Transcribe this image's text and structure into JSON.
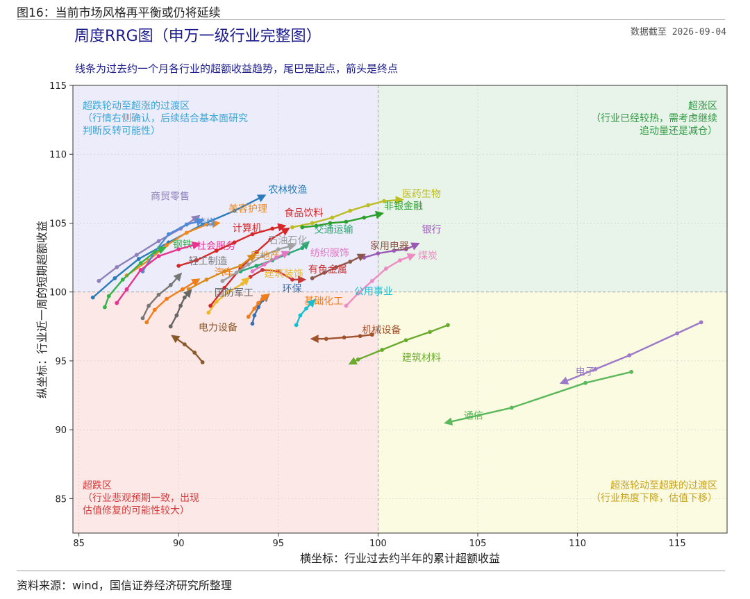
{
  "figure_label": "图16：当前市场风格再平衡或仍将延续",
  "source": "资料来源：wind，国信证券经济研究所整理",
  "chart_data": {
    "type": "line",
    "title": "周度RRG图（申万一级行业完整图）",
    "date_note": "数据截至  2026-09-04",
    "subtitle": "线条为过去约一个月各行业的超额收益趋势，尾巴是起点，箭头是终点",
    "xlabel": "横坐标：行业过去约半年的累计超额收益",
    "ylabel": "纵坐标：行业近一周的短期超额收益",
    "xlim": [
      84.7,
      117.5
    ],
    "ylim": [
      82.5,
      115
    ],
    "xticks": [
      85,
      90,
      95,
      100,
      105,
      110,
      115
    ],
    "yticks": [
      85,
      90,
      95,
      100,
      105,
      110,
      115
    ],
    "center": [
      100,
      100
    ],
    "grid": true,
    "quadrants": [
      {
        "name": "超跌轮动至超涨的过渡区",
        "lines": [
          "超跌轮动至超涨的过渡区",
          "（行情右侧确认，后续结合基本面研究",
          "判断反转可能性）"
        ],
        "color": "#3aa6d6",
        "fill": "#ececfb",
        "corner": "top-left"
      },
      {
        "name": "超涨区",
        "lines": [
          "超涨区",
          "（行业已经较热，需考虑继续",
          "追动量还是减仓）"
        ],
        "color": "#2e9a40",
        "fill": "#e8f3ea",
        "corner": "top-right"
      },
      {
        "name": "超跌区",
        "lines": [
          "超跌区",
          "（行业悲观预期一致，出现",
          "估值修复的可能性较大）"
        ],
        "color": "#d43a3a",
        "fill": "#fde8e8",
        "corner": "bottom-left"
      },
      {
        "name": "超涨轮动至超跌的过渡区",
        "lines": [
          "超涨轮动至超跌的过渡区",
          "（行业热度下降，估值下移）"
        ],
        "color": "#c8a21a",
        "fill": "#fbfbe2",
        "corner": "bottom-right"
      }
    ],
    "series": [
      {
        "name": "农林牧渔",
        "color": "#2b7bba",
        "points": [
          [
            85.7,
            99.6
          ],
          [
            86.8,
            101.0
          ],
          [
            88.0,
            102.4
          ],
          [
            89.5,
            103.6
          ],
          [
            91.2,
            104.9
          ],
          [
            92.8,
            105.9
          ],
          [
            94.3,
            107.0
          ]
        ],
        "label": [
          94.5,
          107.2
        ]
      },
      {
        "name": "商贸零售",
        "color": "#8d7fb8",
        "points": [
          [
            86.0,
            100.8
          ],
          [
            86.9,
            101.8
          ],
          [
            87.9,
            102.7
          ],
          [
            89.0,
            103.7
          ],
          [
            90.1,
            104.6
          ],
          [
            91.0,
            105.5
          ]
        ],
        "label": [
          88.6,
          106.7
        ]
      },
      {
        "name": "美容护理",
        "color": "#f08a1c",
        "points": [
          [
            87.4,
            101.2
          ],
          [
            88.5,
            102.3
          ],
          [
            89.4,
            103.4
          ],
          [
            90.4,
            104.3
          ],
          [
            91.4,
            104.9
          ],
          [
            92.0,
            105.0
          ]
        ],
        "label": [
          92.5,
          105.8
        ]
      },
      {
        "name": "传媒",
        "color": "#4c8ad8",
        "points": [
          [
            88.2,
            101.5
          ],
          [
            88.8,
            102.9
          ],
          [
            89.5,
            104.2
          ],
          [
            90.4,
            104.9
          ],
          [
            91.2,
            105.2
          ]
        ],
        "label": [
          90.9,
          104.8
        ]
      },
      {
        "name": "钢铁",
        "color": "#35b24a",
        "points": [
          [
            86.3,
            98.9
          ],
          [
            86.5,
            99.7
          ],
          [
            87.2,
            100.9
          ],
          [
            88.1,
            102.1
          ],
          [
            88.8,
            102.9
          ],
          [
            89.3,
            103.2
          ]
        ],
        "label": [
          89.7,
          103.2
        ]
      },
      {
        "name": "社会服务",
        "color": "#e6338f",
        "points": [
          [
            86.9,
            99.2
          ],
          [
            87.4,
            100.2
          ],
          [
            88.1,
            101.6
          ],
          [
            89.0,
            102.6
          ],
          [
            90.0,
            103.1
          ],
          [
            91.0,
            103.5
          ]
        ],
        "label": [
          90.9,
          103.1
        ]
      },
      {
        "name": "计算机",
        "color": "#d62728",
        "points": [
          [
            90.0,
            101.9
          ],
          [
            90.9,
            102.3
          ],
          [
            91.9,
            103.0
          ],
          [
            92.8,
            103.6
          ],
          [
            93.7,
            104.2
          ],
          [
            94.7,
            104.6
          ],
          [
            95.3,
            104.8
          ]
        ],
        "label": [
          92.7,
          104.4
        ]
      },
      {
        "name": "食品饮料",
        "color": "#d62728",
        "points": [
          [
            91.6,
            99.0
          ],
          [
            92.3,
            100.3
          ],
          [
            93.1,
            101.7
          ],
          [
            93.9,
            102.9
          ],
          [
            94.6,
            103.8
          ],
          [
            95.5,
            104.6
          ]
        ],
        "label": [
          95.3,
          105.5
        ]
      },
      {
        "name": "医药生物",
        "color": "#bcbd22",
        "points": [
          [
            95.7,
            104.7
          ],
          [
            96.7,
            105.0
          ],
          [
            97.7,
            105.4
          ],
          [
            98.6,
            105.9
          ],
          [
            99.5,
            106.3
          ],
          [
            100.3,
            106.6
          ],
          [
            101.2,
            106.7
          ]
        ],
        "label": [
          101.2,
          106.9
        ]
      },
      {
        "name": "非银金融",
        "color": "#2ca02c",
        "points": [
          [
            96.2,
            104.7
          ],
          [
            96.9,
            104.8
          ],
          [
            97.6,
            105.0
          ],
          [
            98.4,
            105.1
          ],
          [
            99.3,
            105.4
          ],
          [
            100.2,
            105.7
          ]
        ],
        "label": [
          100.3,
          106.0
        ]
      },
      {
        "name": "交通运输",
        "color": "#27a86e",
        "points": [
          [
            93.1,
            101.5
          ],
          [
            93.9,
            101.9
          ],
          [
            94.7,
            102.3
          ],
          [
            95.5,
            102.8
          ],
          [
            96.2,
            103.2
          ],
          [
            96.5,
            103.6
          ]
        ],
        "label": [
          96.8,
          104.3
        ]
      },
      {
        "name": "石油石化",
        "color": "#a0a0a0",
        "points": [
          [
            92.2,
            100.8
          ],
          [
            92.9,
            101.4
          ],
          [
            93.5,
            102.0
          ],
          [
            94.2,
            102.6
          ],
          [
            95.0,
            103.1
          ],
          [
            95.8,
            103.4
          ]
        ],
        "label": [
          94.5,
          103.5
        ]
      },
      {
        "name": "银行",
        "color": "#9b59b6",
        "points": [
          [
            99.3,
            102.5
          ],
          [
            100.0,
            102.8
          ],
          [
            100.8,
            103.0
          ],
          [
            101.4,
            103.1
          ],
          [
            102.0,
            103.5
          ]
        ],
        "label": [
          102.2,
          104.3
        ]
      },
      {
        "name": "家用电器",
        "color": "#8c564b",
        "points": [
          [
            96.7,
            101.0
          ],
          [
            97.3,
            101.4
          ],
          [
            97.9,
            101.8
          ],
          [
            98.6,
            102.2
          ],
          [
            99.3,
            102.7
          ]
        ],
        "label": [
          99.6,
          103.1
        ]
      },
      {
        "name": "煤炭",
        "color": "#ed8cc3",
        "points": [
          [
            98.4,
            99.0
          ],
          [
            99.0,
            99.9
          ],
          [
            99.7,
            100.8
          ],
          [
            100.4,
            101.7
          ],
          [
            101.1,
            102.3
          ],
          [
            101.8,
            102.7
          ]
        ],
        "label": [
          102.0,
          102.4
        ]
      },
      {
        "name": "纺织服饰",
        "color": "#e377c2",
        "points": [
          [
            93.7,
            101.5
          ],
          [
            94.3,
            102.0
          ],
          [
            94.9,
            102.5
          ],
          [
            95.5,
            102.9
          ]
        ],
        "label": [
          96.6,
          102.6
        ]
      },
      {
        "name": "房地产",
        "color": "#d98a1a",
        "points": [
          [
            90.5,
            100.2
          ],
          [
            91.4,
            100.9
          ],
          [
            92.3,
            101.5
          ],
          [
            93.1,
            101.9
          ],
          [
            93.8,
            102.7
          ]
        ],
        "label": [
          93.6,
          102.4
        ]
      },
      {
        "name": "轻工制造",
        "color": "#777777",
        "points": [
          [
            88.2,
            98.1
          ],
          [
            88.5,
            99.0
          ],
          [
            89.0,
            99.8
          ],
          [
            89.6,
            100.5
          ],
          [
            90.1,
            101.3
          ]
        ],
        "label": [
          90.5,
          102.0
        ]
      },
      {
        "name": "有色金属",
        "color": "#c93636",
        "points": [
          [
            93.6,
            101.1
          ],
          [
            94.2,
            101.6
          ],
          [
            95.0,
            101.5
          ],
          [
            95.7,
            100.9
          ],
          [
            96.3,
            100.9
          ]
        ],
        "label": [
          96.5,
          101.4
        ]
      },
      {
        "name": "汽车",
        "color": "#f07d18",
        "points": [
          [
            88.4,
            97.8
          ],
          [
            88.8,
            98.7
          ],
          [
            89.4,
            99.5
          ],
          [
            90.2,
            100.2
          ],
          [
            91.0,
            100.9
          ]
        ],
        "label": [
          91.8,
          101.2
        ]
      },
      {
        "name": "建筑装饰",
        "color": "#f0b92d",
        "points": [
          [
            91.5,
            98.5
          ],
          [
            91.9,
            99.3
          ],
          [
            92.5,
            100.0
          ],
          [
            93.2,
            100.6
          ],
          [
            93.5,
            101.0
          ]
        ],
        "label": [
          94.3,
          101.1
        ]
      },
      {
        "name": "环保",
        "color": "#3c6fb0",
        "points": [
          [
            93.7,
            97.7
          ],
          [
            93.8,
            98.3
          ],
          [
            94.0,
            98.9
          ],
          [
            94.2,
            99.4
          ],
          [
            94.5,
            99.8
          ]
        ],
        "label": [
          95.2,
          100.0
        ]
      },
      {
        "name": "国防军工",
        "color": "#666666",
        "points": [
          [
            89.6,
            97.5
          ],
          [
            89.9,
            98.3
          ],
          [
            90.1,
            99.0
          ],
          [
            90.3,
            99.6
          ],
          [
            90.6,
            100.1
          ]
        ],
        "label": [
          91.8,
          99.7
        ]
      },
      {
        "name": "基础化工",
        "color": "#f07d18",
        "points": [
          [
            93.5,
            98.2
          ],
          [
            93.8,
            98.8
          ],
          [
            94.0,
            99.2
          ],
          [
            94.2,
            99.5
          ],
          [
            94.5,
            99.8
          ]
        ],
        "label": [
          96.3,
          99.1
        ]
      },
      {
        "name": "公用事业",
        "color": "#17becf",
        "points": [
          [
            95.9,
            97.6
          ],
          [
            96.1,
            98.3
          ],
          [
            96.4,
            98.8
          ],
          [
            96.8,
            99.4
          ]
        ],
        "label": [
          98.8,
          99.8
        ]
      },
      {
        "name": "电力设备",
        "color": "#8b5a2b",
        "points": [
          [
            91.2,
            94.9
          ],
          [
            90.8,
            95.6
          ],
          [
            90.3,
            96.2
          ],
          [
            89.7,
            96.8
          ]
        ],
        "label": [
          91.0,
          97.2
        ]
      },
      {
        "name": "机械设备",
        "color": "#a0522d",
        "points": [
          [
            99.7,
            96.9
          ],
          [
            99.1,
            96.8
          ],
          [
            98.3,
            96.7
          ],
          [
            97.4,
            96.6
          ],
          [
            96.7,
            96.6
          ]
        ],
        "label": [
          99.2,
          97.0
        ]
      },
      {
        "name": "建筑材料",
        "color": "#6aab2e",
        "points": [
          [
            103.5,
            97.6
          ],
          [
            102.6,
            97.1
          ],
          [
            101.4,
            96.5
          ],
          [
            100.2,
            95.8
          ],
          [
            99.0,
            95.1
          ],
          [
            98.6,
            94.8
          ]
        ],
        "label": [
          101.2,
          95.0
        ]
      },
      {
        "name": "电子",
        "color": "#9b78c8",
        "points": [
          [
            116.2,
            97.8
          ],
          [
            115.0,
            97.0
          ],
          [
            112.6,
            95.4
          ],
          [
            110.9,
            94.4
          ],
          [
            109.2,
            93.4
          ]
        ],
        "label": [
          109.9,
          94.0
        ]
      },
      {
        "name": "通信",
        "color": "#5cb85c",
        "points": [
          [
            112.7,
            94.2
          ],
          [
            110.4,
            93.4
          ],
          [
            106.7,
            91.6
          ],
          [
            103.4,
            90.5
          ]
        ],
        "label": [
          104.3,
          90.8
        ]
      }
    ]
  }
}
